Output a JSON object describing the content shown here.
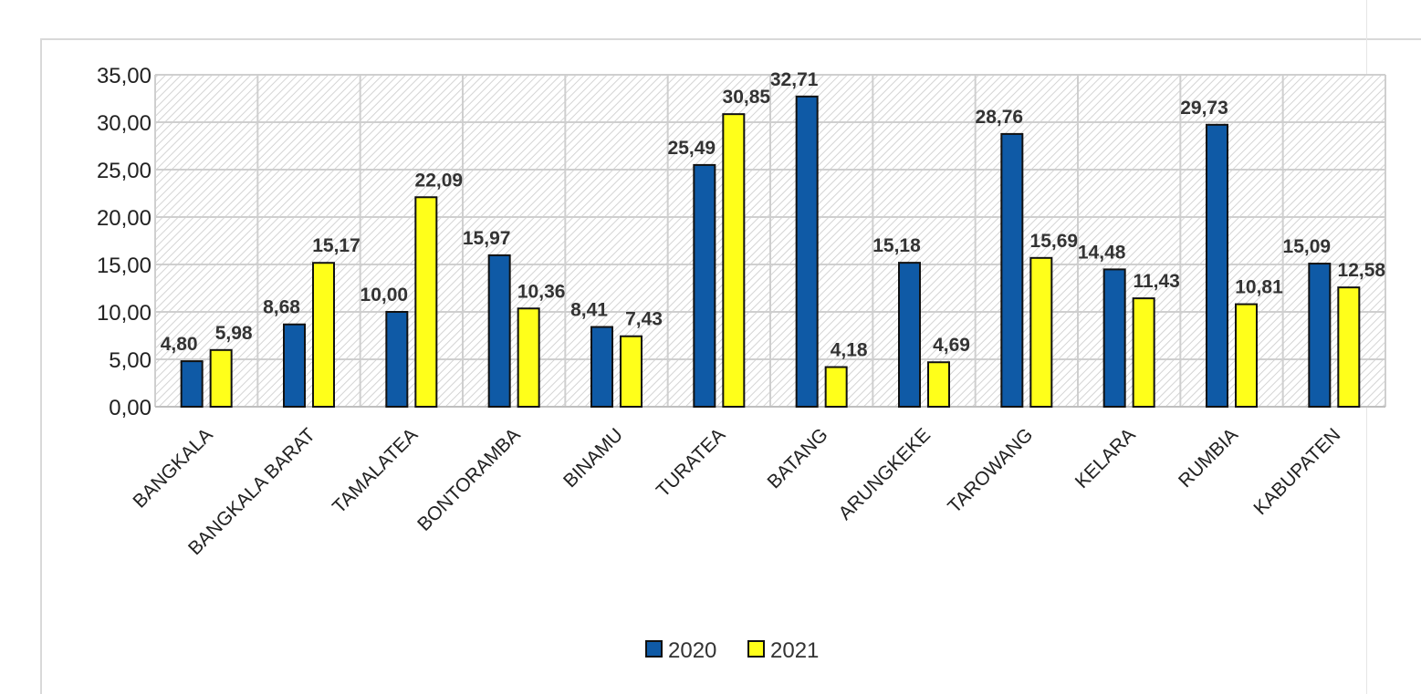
{
  "chart_data": {
    "type": "bar",
    "categories": [
      "BANGKALA",
      "BANGKALA BARAT",
      "TAMALATEA",
      "BONTORAMBA",
      "BINAMU",
      "TURATEA",
      "BATANG",
      "ARUNGKEKE",
      "TAROWANG",
      "KELARA",
      "RUMBIA",
      "KABUPATEN"
    ],
    "series": [
      {
        "name": "2020",
        "color": "#0f5aa6",
        "values": [
          4.8,
          8.68,
          10.0,
          15.97,
          8.41,
          25.49,
          32.71,
          15.18,
          28.76,
          14.48,
          29.73,
          15.09
        ],
        "labels": [
          "4,80",
          "8,68",
          "10,00",
          "15,97",
          "8,41",
          "25,49",
          "32,71",
          "15,18",
          "28,76",
          "14,48",
          "29,73",
          "15,09"
        ]
      },
      {
        "name": "2021",
        "color": "#ffff1a",
        "values": [
          5.98,
          15.17,
          22.09,
          10.36,
          7.43,
          30.85,
          4.18,
          4.69,
          15.69,
          11.43,
          10.81,
          12.58
        ],
        "labels": [
          "5,98",
          "15,17",
          "22,09",
          "10,36",
          "7,43",
          "30,85",
          "4,18",
          "4,69",
          "15,69",
          "11,43",
          "10,81",
          "12,58"
        ]
      }
    ],
    "y_ticks": [
      "0,00",
      "5,00",
      "10,00",
      "15,00",
      "20,00",
      "25,00",
      "30,00",
      "35,00"
    ],
    "ylim": [
      0,
      35
    ],
    "title": "",
    "xlabel": "",
    "ylabel": "",
    "grid": true,
    "legend_position": "bottom-center"
  }
}
